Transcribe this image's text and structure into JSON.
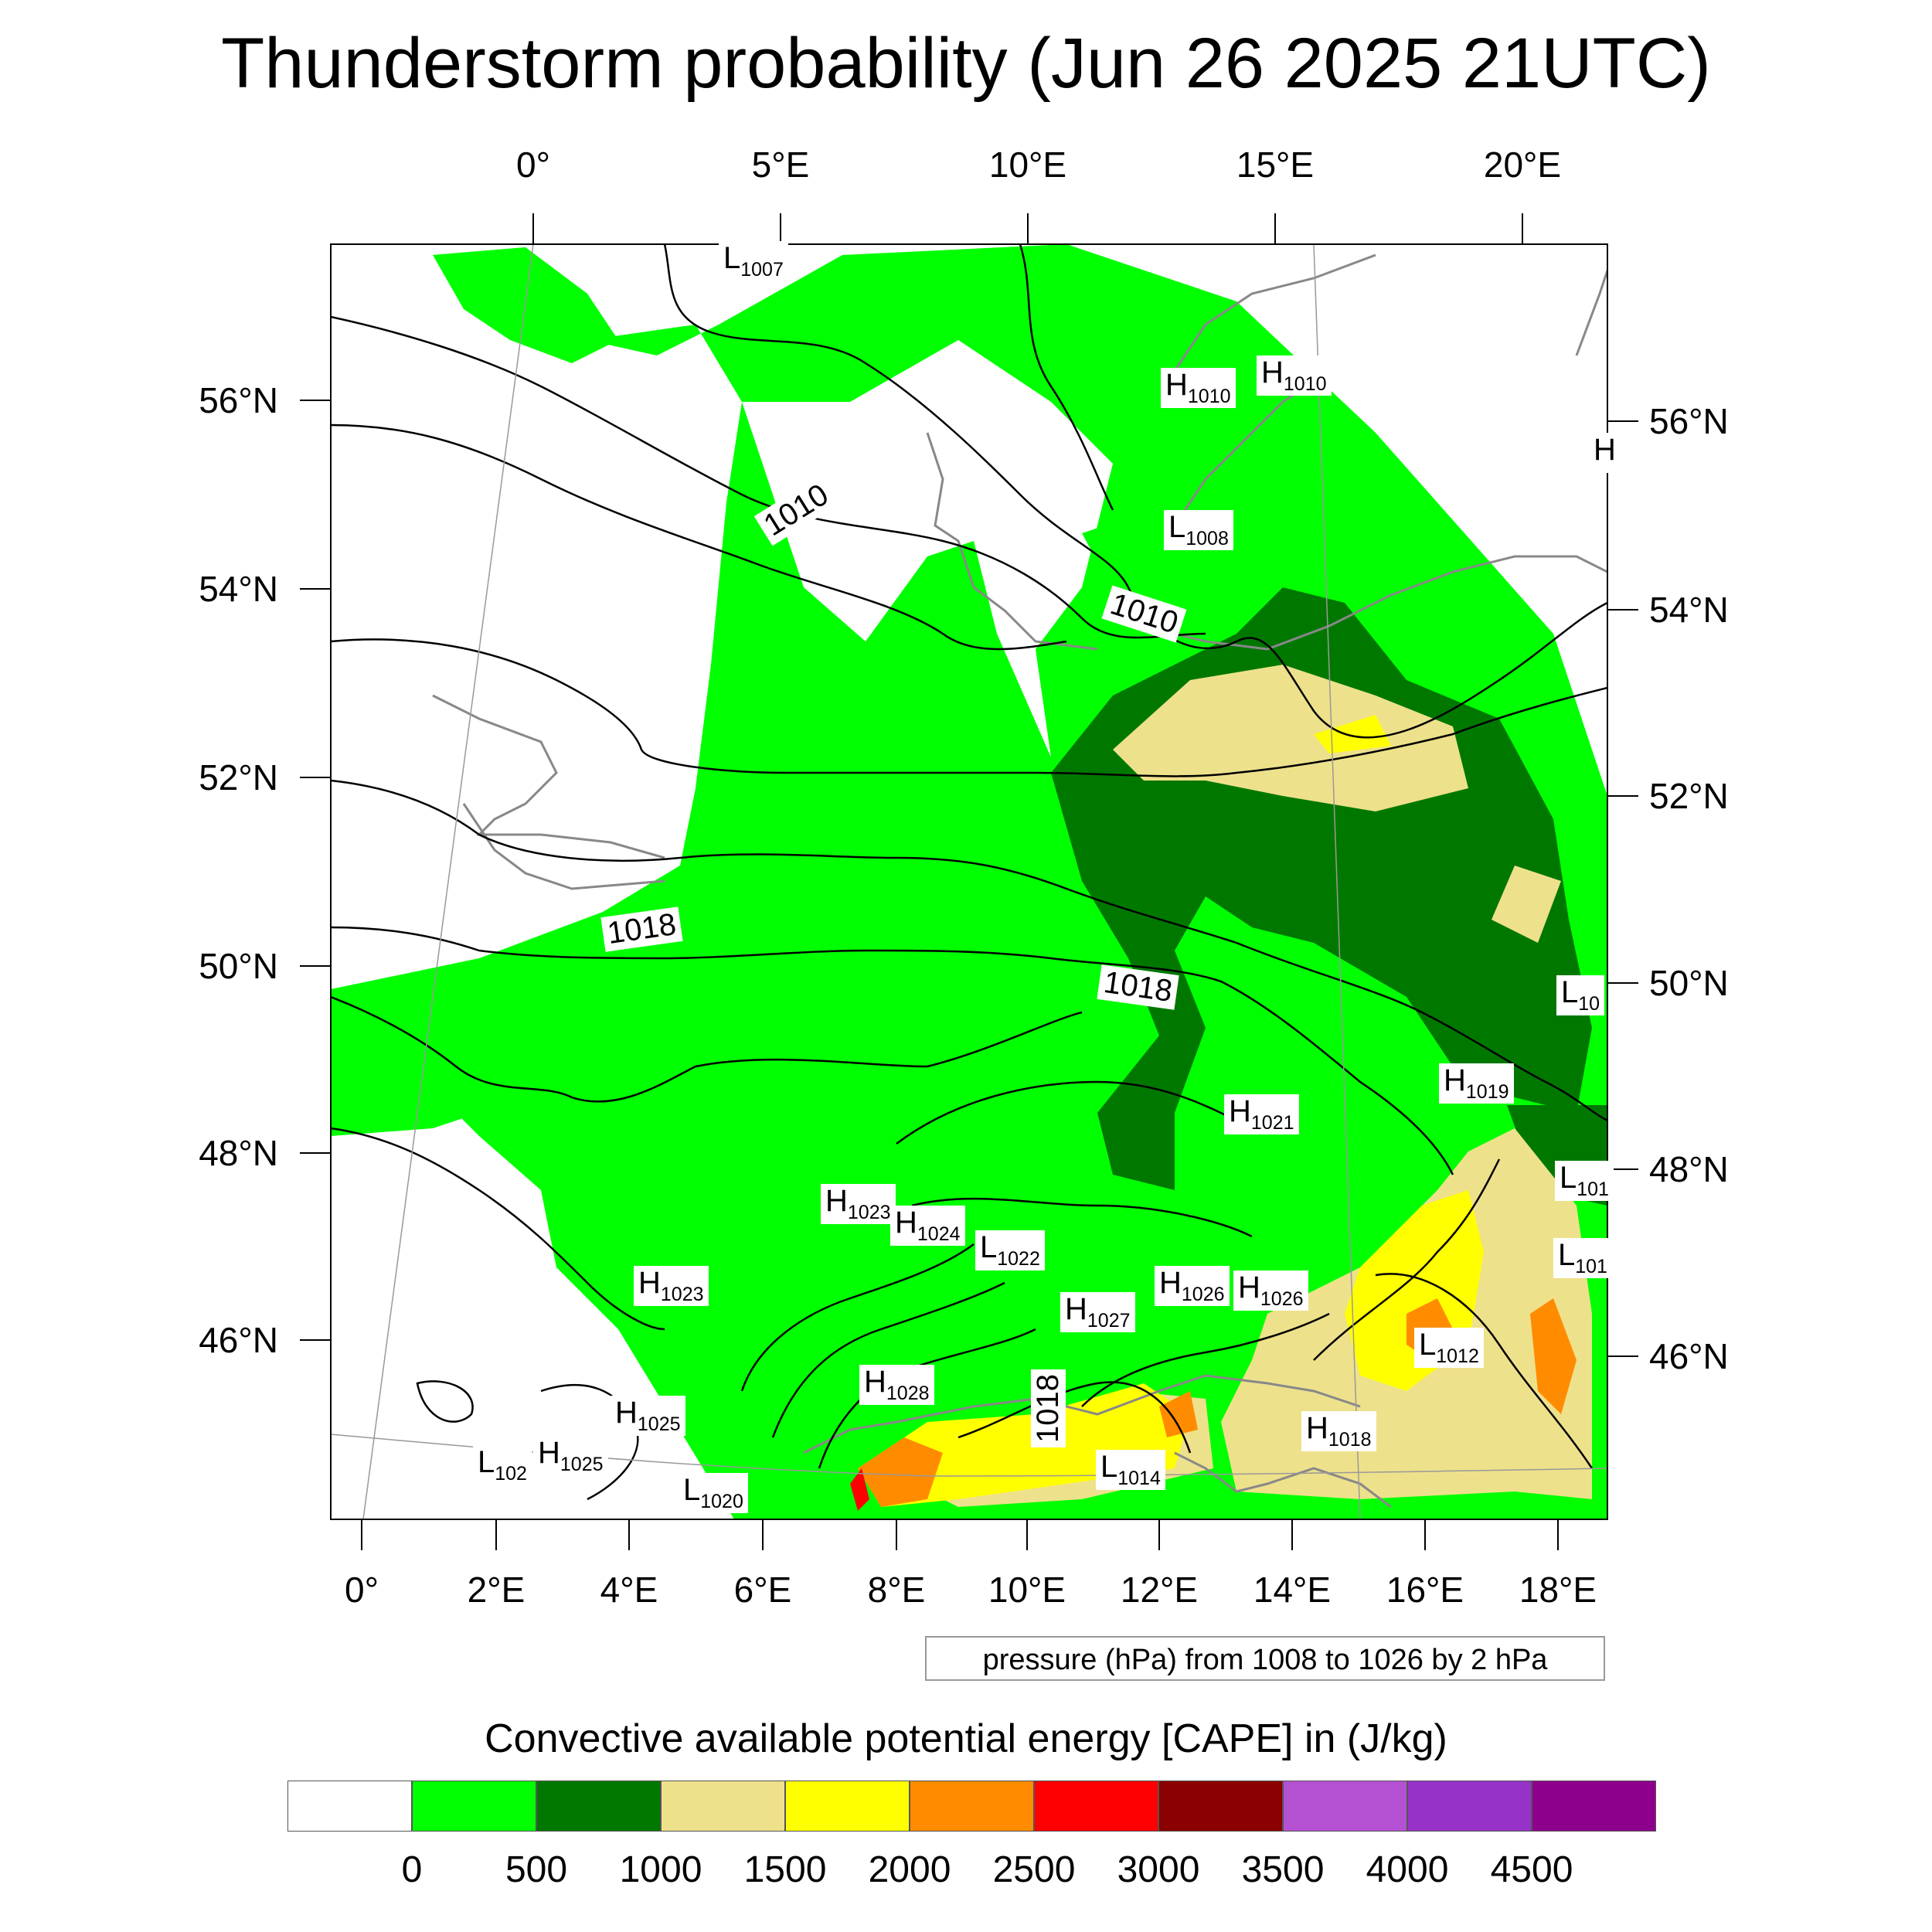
{
  "title": "Thunderstorm probability (Jun 26 2025 21UTC)",
  "top_axis": [
    "0°",
    "5°E",
    "10°E",
    "15°E",
    "20°E"
  ],
  "bottom_axis": [
    "0°",
    "2°E",
    "4°E",
    "6°E",
    "8°E",
    "10°E",
    "12°E",
    "14°E",
    "16°E",
    "18°E"
  ],
  "left_axis": [
    "56°N",
    "54°N",
    "52°N",
    "50°N",
    "48°N",
    "46°N"
  ],
  "right_axis": [
    "56°N",
    "54°N",
    "52°N",
    "50°N",
    "48°N",
    "46°N"
  ],
  "isobar_labels": [
    "1010",
    "1010",
    "1018",
    "1018",
    "1018"
  ],
  "pressure_centers": [
    {
      "type": "L",
      "value": "1007"
    },
    {
      "type": "H",
      "value": "1010"
    },
    {
      "type": "H",
      "value": "1010"
    },
    {
      "type": "L",
      "value": "1008"
    },
    {
      "type": "L",
      "value": "10"
    },
    {
      "type": "H",
      "value": "1019"
    },
    {
      "type": "H",
      "value": "1021"
    },
    {
      "type": "L",
      "value": "101"
    },
    {
      "type": "L",
      "value": "101"
    },
    {
      "type": "H",
      "value": "1023"
    },
    {
      "type": "H",
      "value": "1024"
    },
    {
      "type": "L",
      "value": "1022"
    },
    {
      "type": "H",
      "value": "1023"
    },
    {
      "type": "H",
      "value": "1026"
    },
    {
      "type": "H",
      "value": "1026"
    },
    {
      "type": "H",
      "value": "1027"
    },
    {
      "type": "L",
      "value": "1012"
    },
    {
      "type": "H",
      "value": "1028"
    },
    {
      "type": "H",
      "value": "1025"
    },
    {
      "type": "H",
      "value": "1018"
    },
    {
      "type": "L",
      "value": "102"
    },
    {
      "type": "H",
      "value": "1025"
    },
    {
      "type": "L",
      "value": "1020"
    },
    {
      "type": "L",
      "value": "1014"
    },
    {
      "type": "H",
      "value": ""
    }
  ],
  "info_box": "pressure (hPa) from 1008 to 1026 by 2 hPa",
  "colorbar": {
    "title": "Convective available potential energy [CAPE] in (J/kg)",
    "colors": [
      "#ffffff",
      "#00ff00",
      "#007800",
      "#eee18c",
      "#ffff00",
      "#ff8c00",
      "#ff0000",
      "#8b0000",
      "#b450d2",
      "#9632c8",
      "#8c008c"
    ],
    "ticks": [
      "0",
      "500",
      "1000",
      "1500",
      "2000",
      "2500",
      "3000",
      "3500",
      "4000",
      "4500"
    ]
  }
}
